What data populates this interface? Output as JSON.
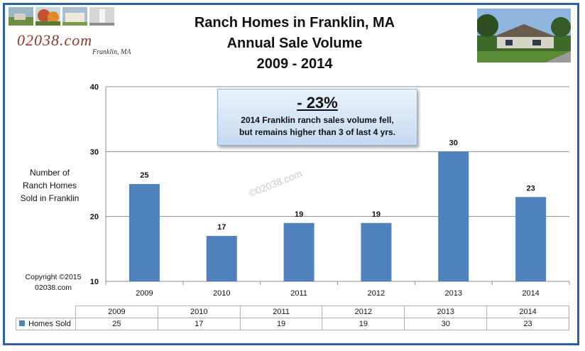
{
  "title_lines": [
    "Ranch Homes in Franklin, MA",
    "Annual Sale Volume",
    "2009 - 2014"
  ],
  "logo": {
    "site": "02038.com",
    "town": "Franklin, MA"
  },
  "ylabel_lines": [
    "Number of",
    "Ranch Homes",
    "Sold in Franklin"
  ],
  "copyright_lines": [
    "Copyright ©2015",
    "02038.com"
  ],
  "callout": {
    "pct": "- 23%",
    "note_lines": [
      "2014 Franklin ranch sales volume fell,",
      "but remains higher than 3 of last 4 yrs."
    ]
  },
  "watermark": "©02038.com",
  "colors": {
    "bar": "#4f81bd",
    "frame": "#2c5fa3",
    "grid": "#8c8c8c"
  },
  "chart_data": {
    "type": "bar",
    "categories": [
      "2009",
      "2010",
      "2011",
      "2012",
      "2013",
      "2014"
    ],
    "series": [
      {
        "name": "Homes Sold",
        "values": [
          25,
          17,
          19,
          19,
          30,
          23
        ]
      }
    ],
    "ylim": [
      10,
      40
    ],
    "yticks": [
      10,
      20,
      30,
      40
    ],
    "grid": true,
    "legend": "data table below chart"
  }
}
